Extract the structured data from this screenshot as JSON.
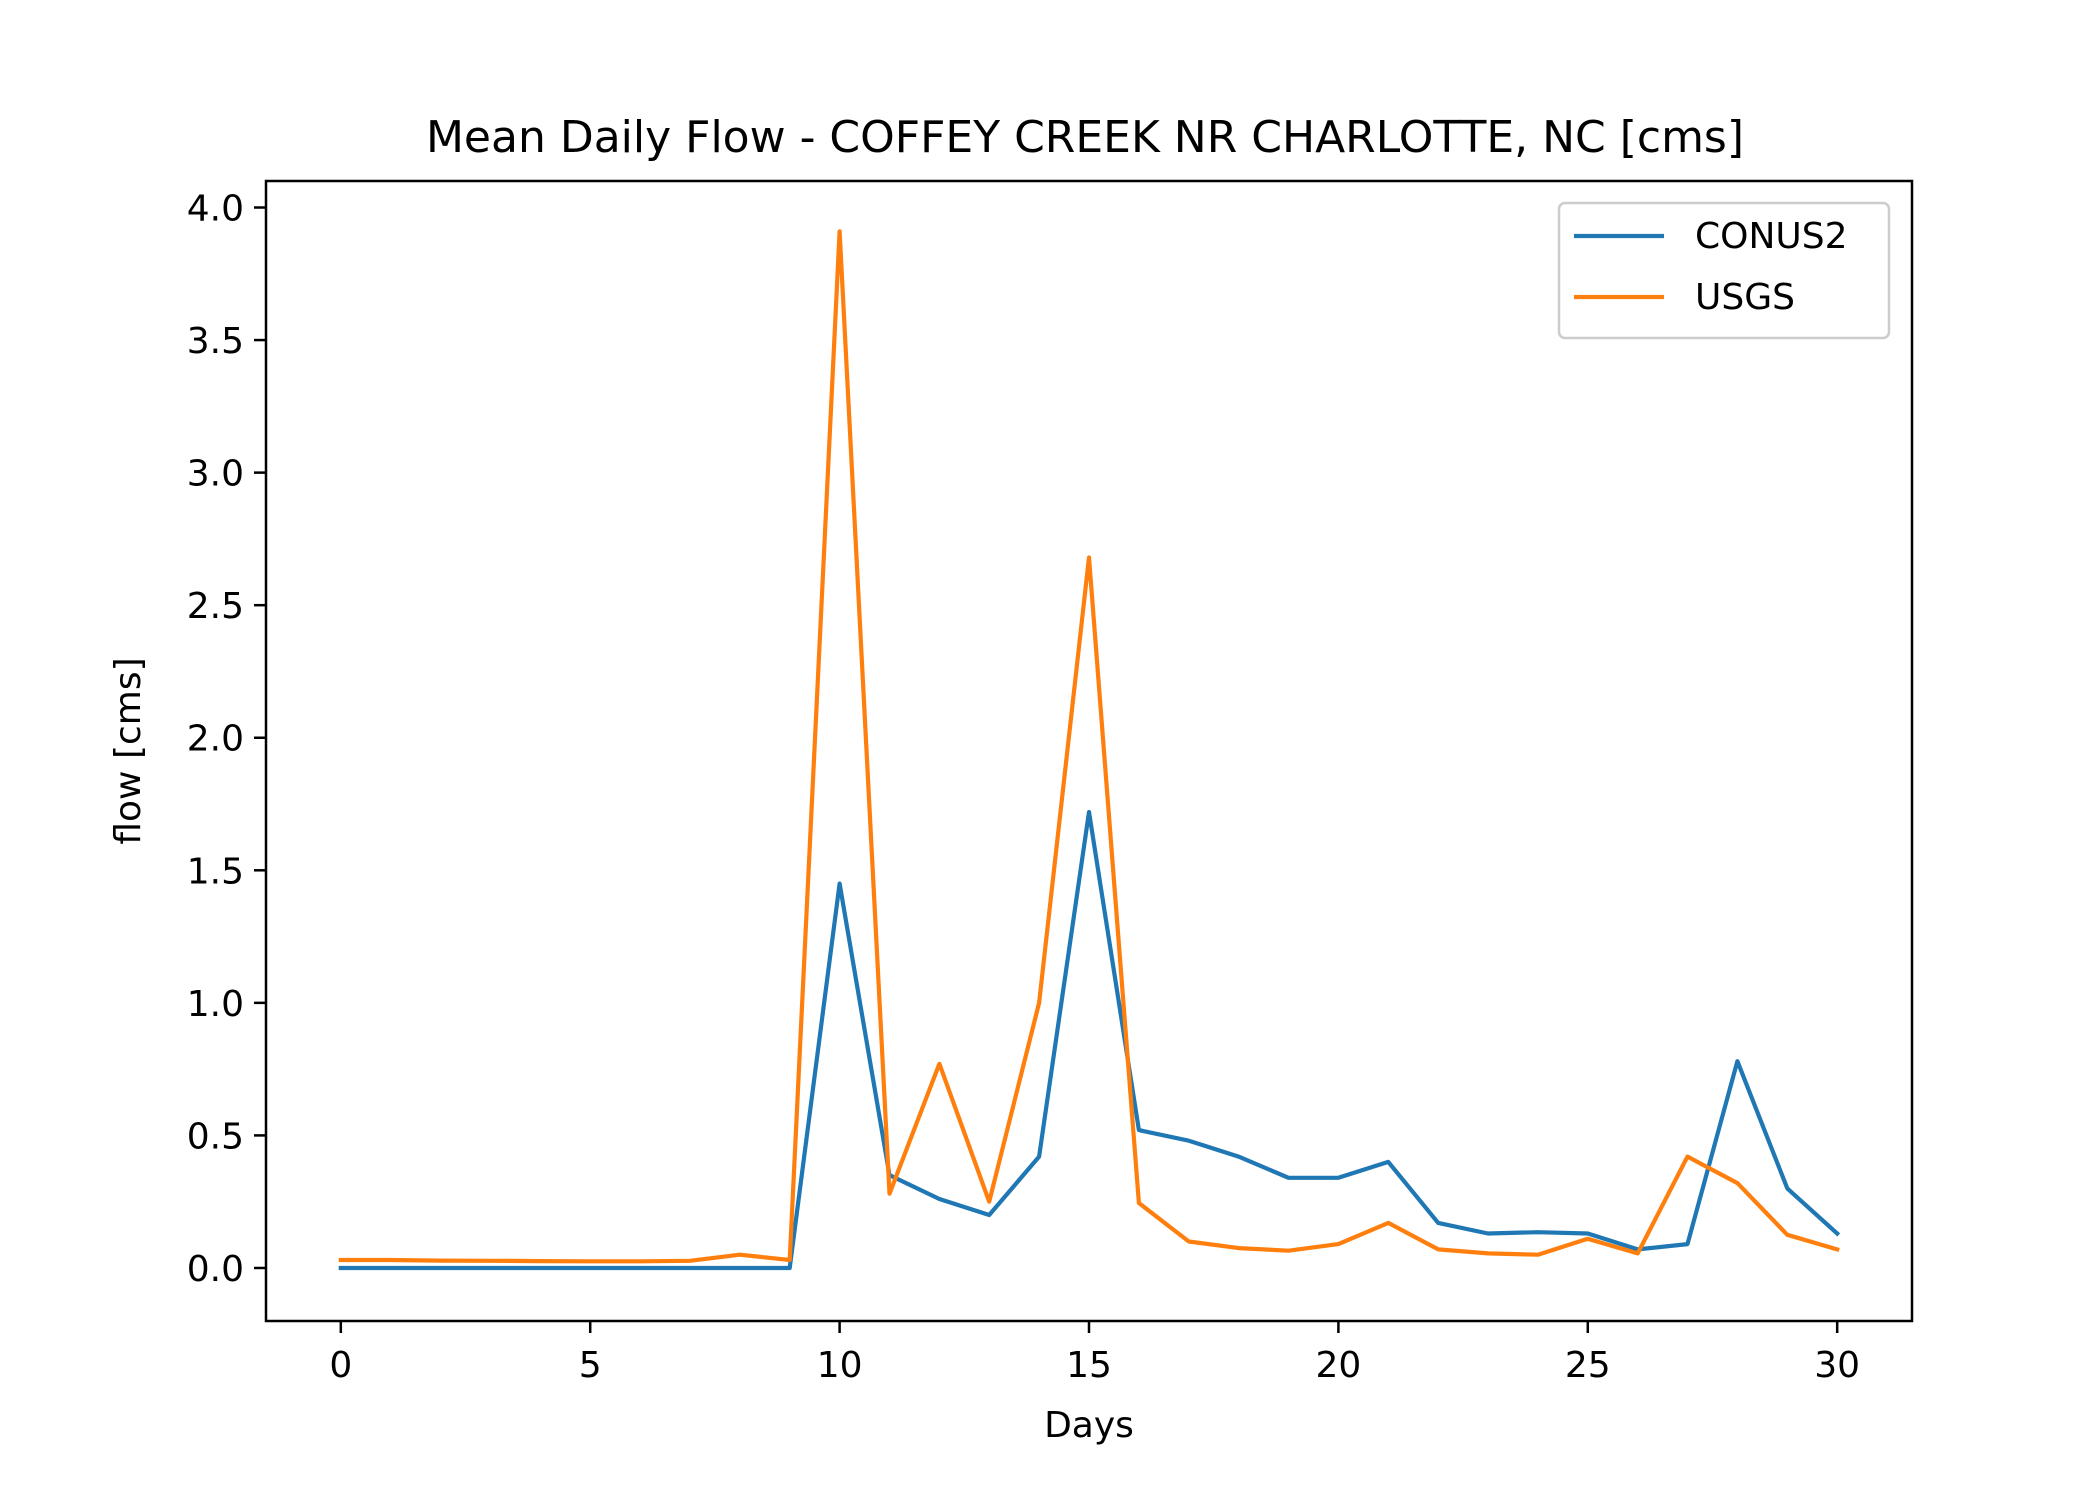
{
  "chart_data": {
    "type": "line",
    "title": "Mean Daily Flow - COFFEY CREEK NR CHARLOTTE, NC [cms]",
    "xlabel": "Days",
    "ylabel": "flow [cms]",
    "xlim": [
      -1.5,
      31.5
    ],
    "ylim": [
      -0.2,
      4.1
    ],
    "xticks": [
      0,
      5,
      10,
      15,
      20,
      25,
      30
    ],
    "xtick_labels": [
      "0",
      "5",
      "10",
      "15",
      "20",
      "25",
      "30"
    ],
    "yticks": [
      0.0,
      0.5,
      1.0,
      1.5,
      2.0,
      2.5,
      3.0,
      3.5,
      4.0
    ],
    "ytick_labels": [
      "0.0",
      "0.5",
      "1.0",
      "1.5",
      "2.0",
      "2.5",
      "3.0",
      "3.5",
      "4.0"
    ],
    "grid": false,
    "legend_position": "top-right",
    "x": [
      0,
      1,
      2,
      3,
      4,
      5,
      6,
      7,
      8,
      9,
      10,
      11,
      12,
      13,
      14,
      15,
      16,
      17,
      18,
      19,
      20,
      21,
      22,
      23,
      24,
      25,
      26,
      27,
      28,
      29,
      30
    ],
    "series": [
      {
        "name": "CONUS2",
        "color": "#1f77b4",
        "values": [
          0.0,
          0.0,
          0.0,
          0.0,
          0.0,
          0.0,
          0.0,
          0.0,
          0.0,
          0.0,
          1.45,
          0.35,
          0.26,
          0.2,
          0.42,
          1.72,
          0.52,
          0.48,
          0.42,
          0.34,
          0.34,
          0.4,
          0.17,
          0.13,
          0.135,
          0.13,
          0.07,
          0.09,
          0.78,
          0.3,
          0.13
        ]
      },
      {
        "name": "USGS",
        "color": "#ff7f0e",
        "values": [
          0.03,
          0.03,
          0.028,
          0.027,
          0.026,
          0.025,
          0.025,
          0.027,
          0.05,
          0.03,
          3.91,
          0.28,
          0.77,
          0.25,
          1.0,
          2.68,
          0.245,
          0.1,
          0.075,
          0.065,
          0.09,
          0.17,
          0.07,
          0.055,
          0.05,
          0.11,
          0.055,
          0.42,
          0.32,
          0.125,
          0.07
        ]
      }
    ]
  }
}
